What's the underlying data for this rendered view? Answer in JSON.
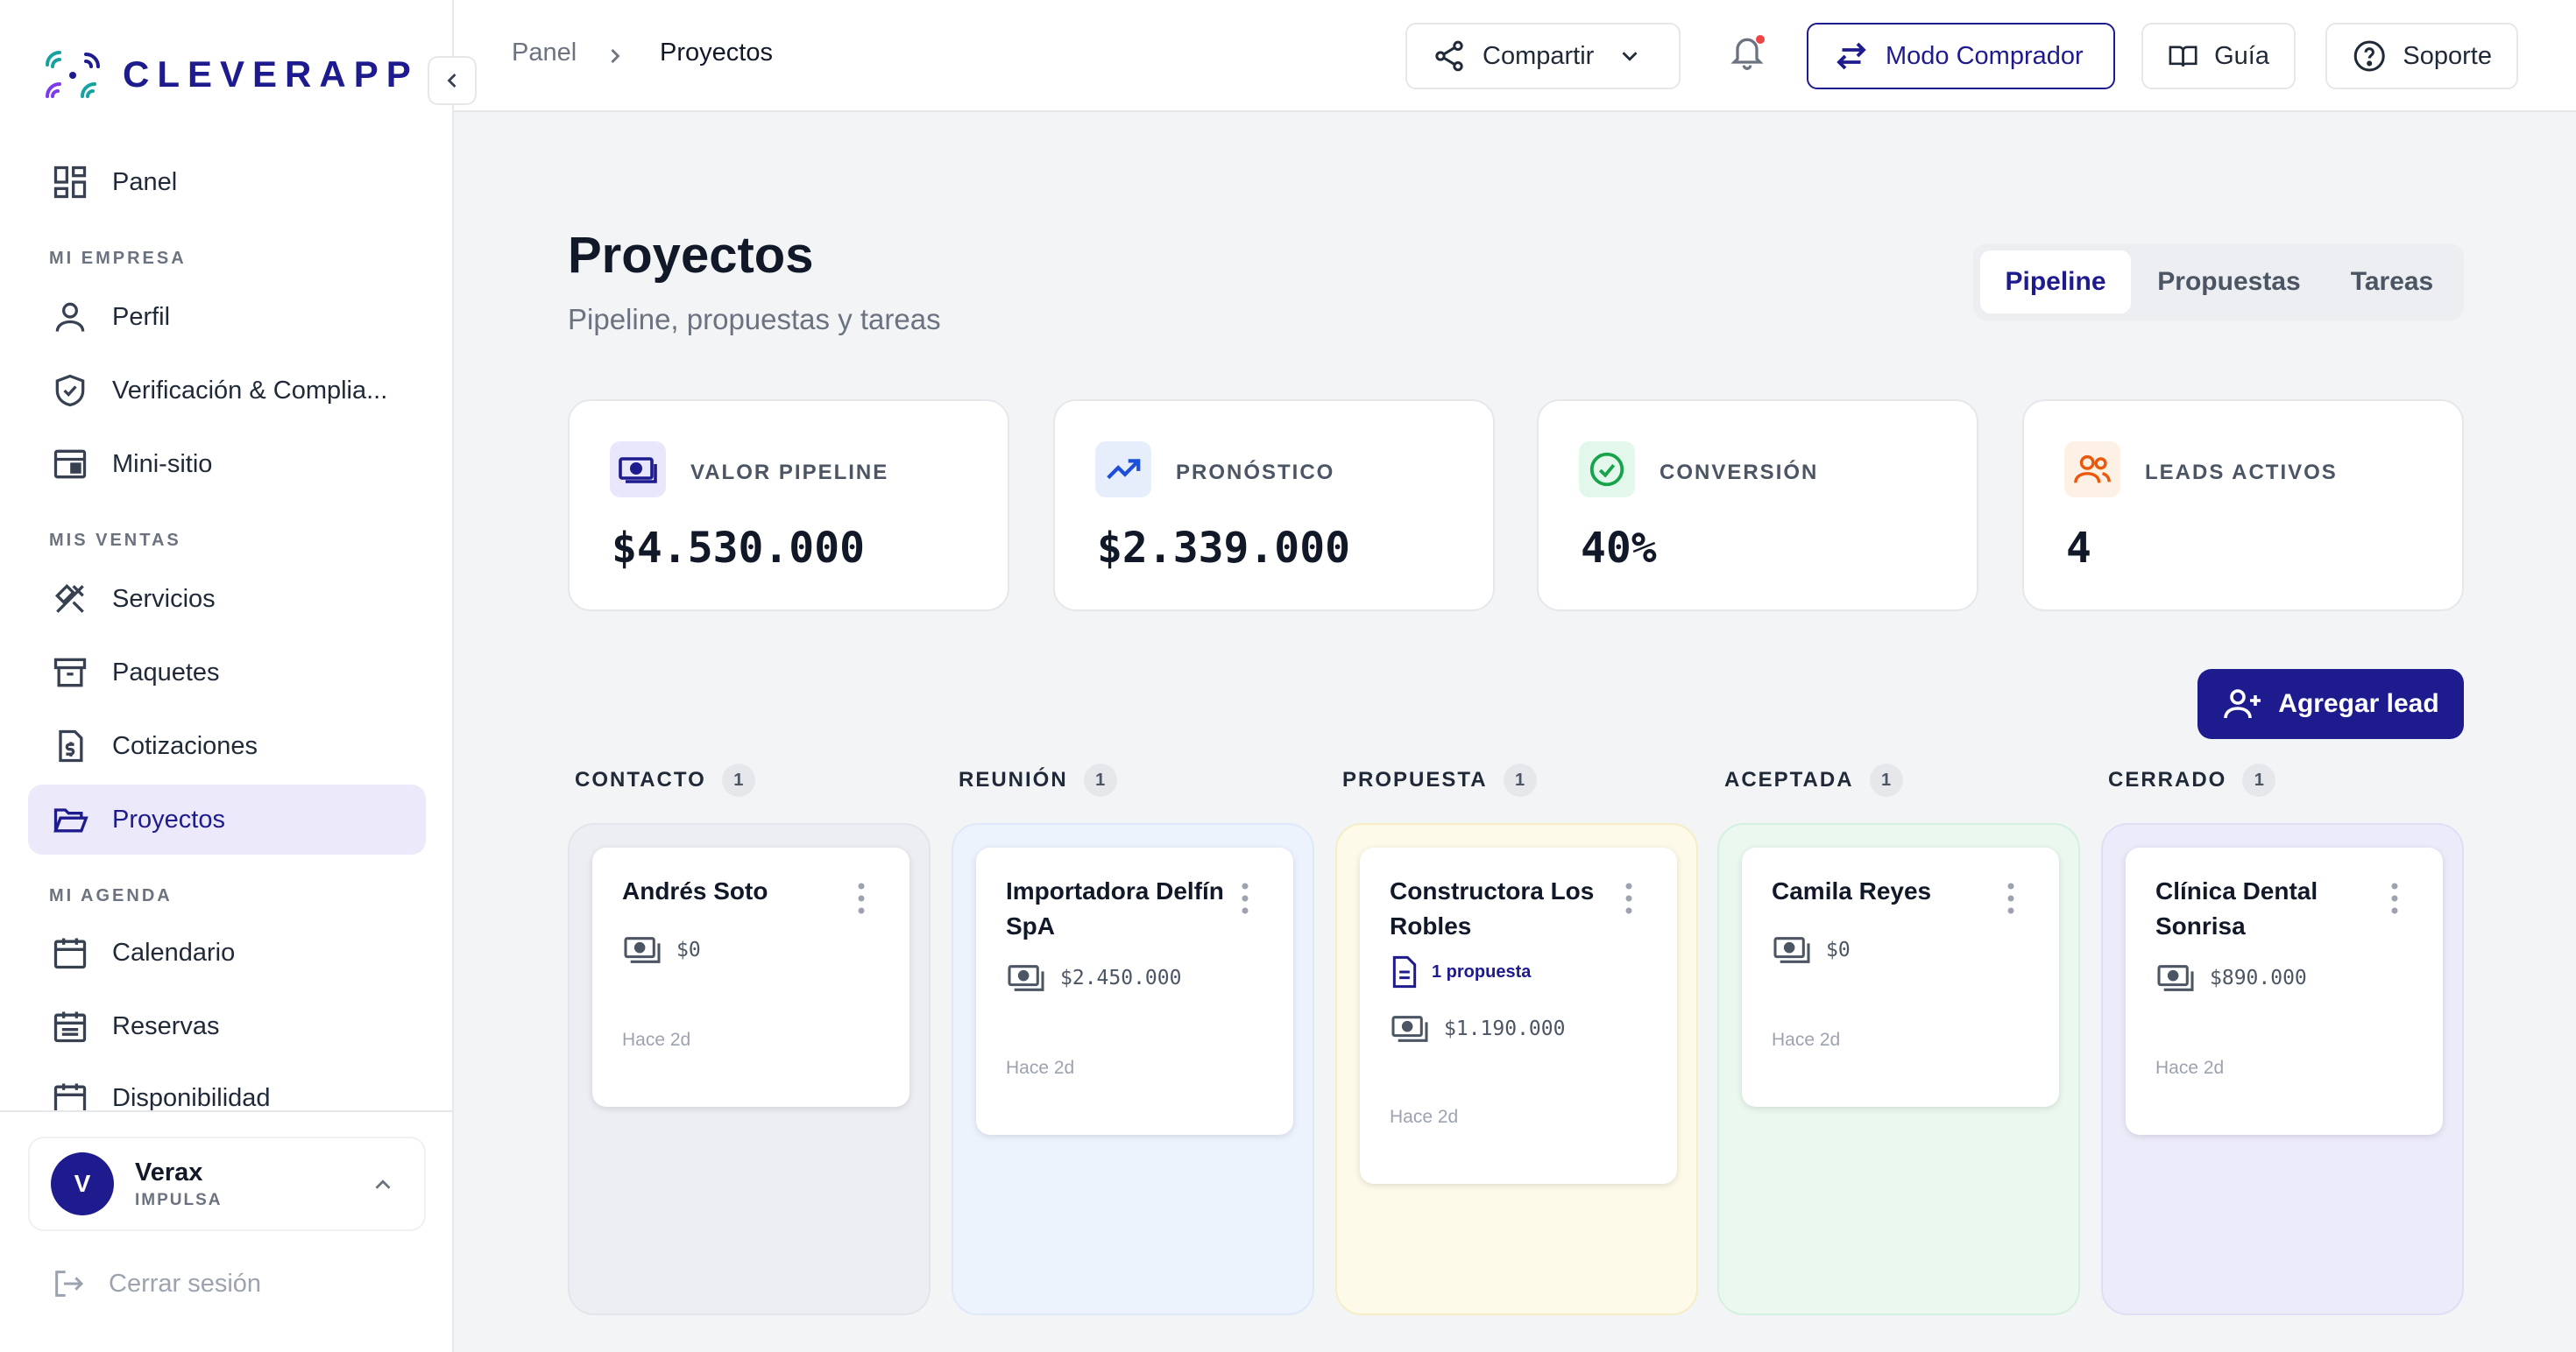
{
  "app": {
    "name": "CLEVERAPP",
    "accent": "#1e1b8f"
  },
  "sidebar": {
    "top_item": {
      "label": "Panel",
      "icon": "dashboard-icon"
    },
    "sections": [
      {
        "title": "MI EMPRESA",
        "items": [
          {
            "label": "Perfil",
            "icon": "user-icon"
          },
          {
            "label": "Verificación & Complia...",
            "icon": "shield-check-icon"
          },
          {
            "label": "Mini-sitio",
            "icon": "browser-window-icon"
          }
        ]
      },
      {
        "title": "MIS VENTAS",
        "items": [
          {
            "label": "Servicios",
            "icon": "tools-icon"
          },
          {
            "label": "Paquetes",
            "icon": "archive-box-icon"
          },
          {
            "label": "Cotizaciones",
            "icon": "invoice-dollar-icon"
          },
          {
            "label": "Proyectos",
            "icon": "folder-open-icon",
            "active": true
          }
        ]
      },
      {
        "title": "MI AGENDA",
        "items": [
          {
            "label": "Calendario",
            "icon": "calendar-icon"
          },
          {
            "label": "Reservas",
            "icon": "calendar-list-icon"
          },
          {
            "label": "Disponibilidad",
            "icon": "calendar-clock-icon"
          }
        ]
      }
    ],
    "user": {
      "initial": "V",
      "name": "Verax",
      "plan": "IMPULSA"
    },
    "logout": "Cerrar sesión"
  },
  "topbar": {
    "breadcrumb": [
      "Panel",
      "Proyectos"
    ],
    "share": "Compartir",
    "buyer_mode": "Modo Comprador",
    "guide": "Guía",
    "support": "Soporte"
  },
  "page": {
    "title": "Proyectos",
    "subtitle": "Pipeline, propuestas y tareas",
    "tabs": [
      {
        "label": "Pipeline",
        "active": true
      },
      {
        "label": "Propuestas"
      },
      {
        "label": "Tareas"
      }
    ],
    "add_lead": "Agregar lead"
  },
  "kpis": [
    {
      "label": "VALOR PIPELINE",
      "value": "$4.530.000",
      "icon": "cash-icon",
      "color": "#1e1b8f"
    },
    {
      "label": "PRONÓSTICO",
      "value": "$2.339.000",
      "icon": "trending-up-icon",
      "color": "#1d4ed8"
    },
    {
      "label": "CONVERSIÓN",
      "value": "40%",
      "icon": "check-circle-icon",
      "color": "#16a34a"
    },
    {
      "label": "LEADS ACTIVOS",
      "value": "4",
      "icon": "users-icon",
      "color": "#ea580c"
    }
  ],
  "pipeline": [
    {
      "stage": "CONTACTO",
      "count": "1",
      "cards": [
        {
          "name": "Andrés Soto",
          "amount": "$0",
          "time": "Hace 2d"
        }
      ]
    },
    {
      "stage": "REUNIÓN",
      "count": "1",
      "cards": [
        {
          "name": "Importadora Delfín SpA",
          "amount": "$2.450.000",
          "time": "Hace 2d"
        }
      ]
    },
    {
      "stage": "PROPUESTA",
      "count": "1",
      "cards": [
        {
          "name": "Constructora Los Robles",
          "proposal": "1 propuesta",
          "amount": "$1.190.000",
          "time": "Hace 2d"
        }
      ]
    },
    {
      "stage": "ACEPTADA",
      "count": "1",
      "cards": [
        {
          "name": "Camila Reyes",
          "amount": "$0",
          "time": "Hace 2d"
        }
      ]
    },
    {
      "stage": "CERRADO",
      "count": "1",
      "cards": [
        {
          "name": "Clínica Dental Sonrisa",
          "amount": "$890.000",
          "time": "Hace 2d"
        }
      ]
    }
  ]
}
